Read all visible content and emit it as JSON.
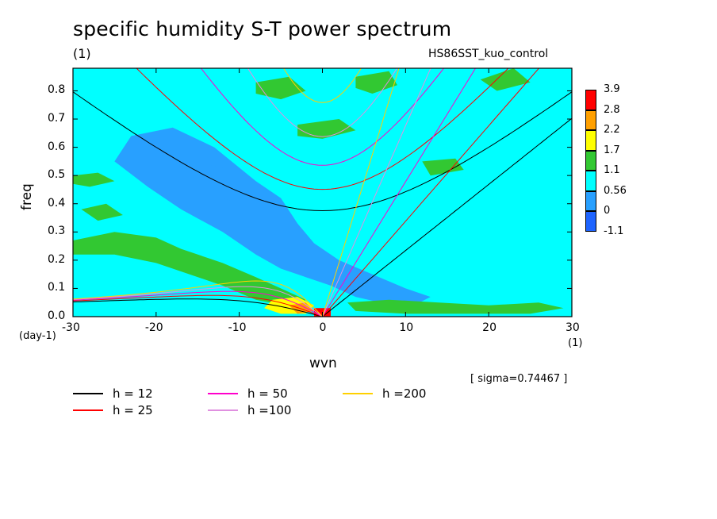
{
  "title": "specific humidity S-T power spectrum",
  "units_label": "(1)",
  "subtitle": "HS86SST_kuo_control",
  "chart_data": {
    "type": "heatmap",
    "title": "specific humidity S-T power spectrum",
    "xlabel": "wvn",
    "ylabel": "freq",
    "xunit": "(1)",
    "yunit": "(day-1)",
    "xlim": [
      -30,
      30
    ],
    "ylim": [
      0,
      0.88
    ],
    "xticks": [
      -30,
      -20,
      -10,
      0,
      10,
      20,
      30
    ],
    "yticks": [
      0.0,
      0.1,
      0.2,
      0.3,
      0.4,
      0.5,
      0.6,
      0.7,
      0.8
    ],
    "xtick_labels": [
      "-30",
      "-20",
      "-10",
      "0",
      "10",
      "20",
      "30"
    ],
    "ytick_labels": [
      "0.0",
      "0.1",
      "0.2",
      "0.3",
      "0.4",
      "0.5",
      "0.6",
      "0.7",
      "0.8"
    ],
    "colorbar": {
      "levels": [
        "3.9",
        "2.8",
        "2.2",
        "1.7",
        "1.1",
        "0.56",
        "0",
        "-1.1"
      ],
      "colors": [
        "#ff0000",
        "#ffa000",
        "#ffff00",
        "#32c832",
        "#00ffff",
        "#28a0ff",
        "#1e64ff",
        "#1e64ff"
      ]
    },
    "background_color": "#00ffff",
    "annotation": "[ sigma=0.74467 ]",
    "dispersion_curves": [
      {
        "name": "h = 12",
        "color": "#000000"
      },
      {
        "name": "h = 25",
        "color": "#ff0000"
      },
      {
        "name": "h = 50",
        "color": "#ff00cc"
      },
      {
        "name": "h =100",
        "color": "#e090e0"
      },
      {
        "name": "h =200",
        "color": "#ffd000"
      }
    ],
    "legend_position": "bottom-left"
  },
  "labels": {
    "xlabel": "wvn",
    "ylabel": "freq",
    "xunit": "(1)",
    "yunit": "(day-1)",
    "sigma": "[ sigma=0.74467 ]"
  }
}
